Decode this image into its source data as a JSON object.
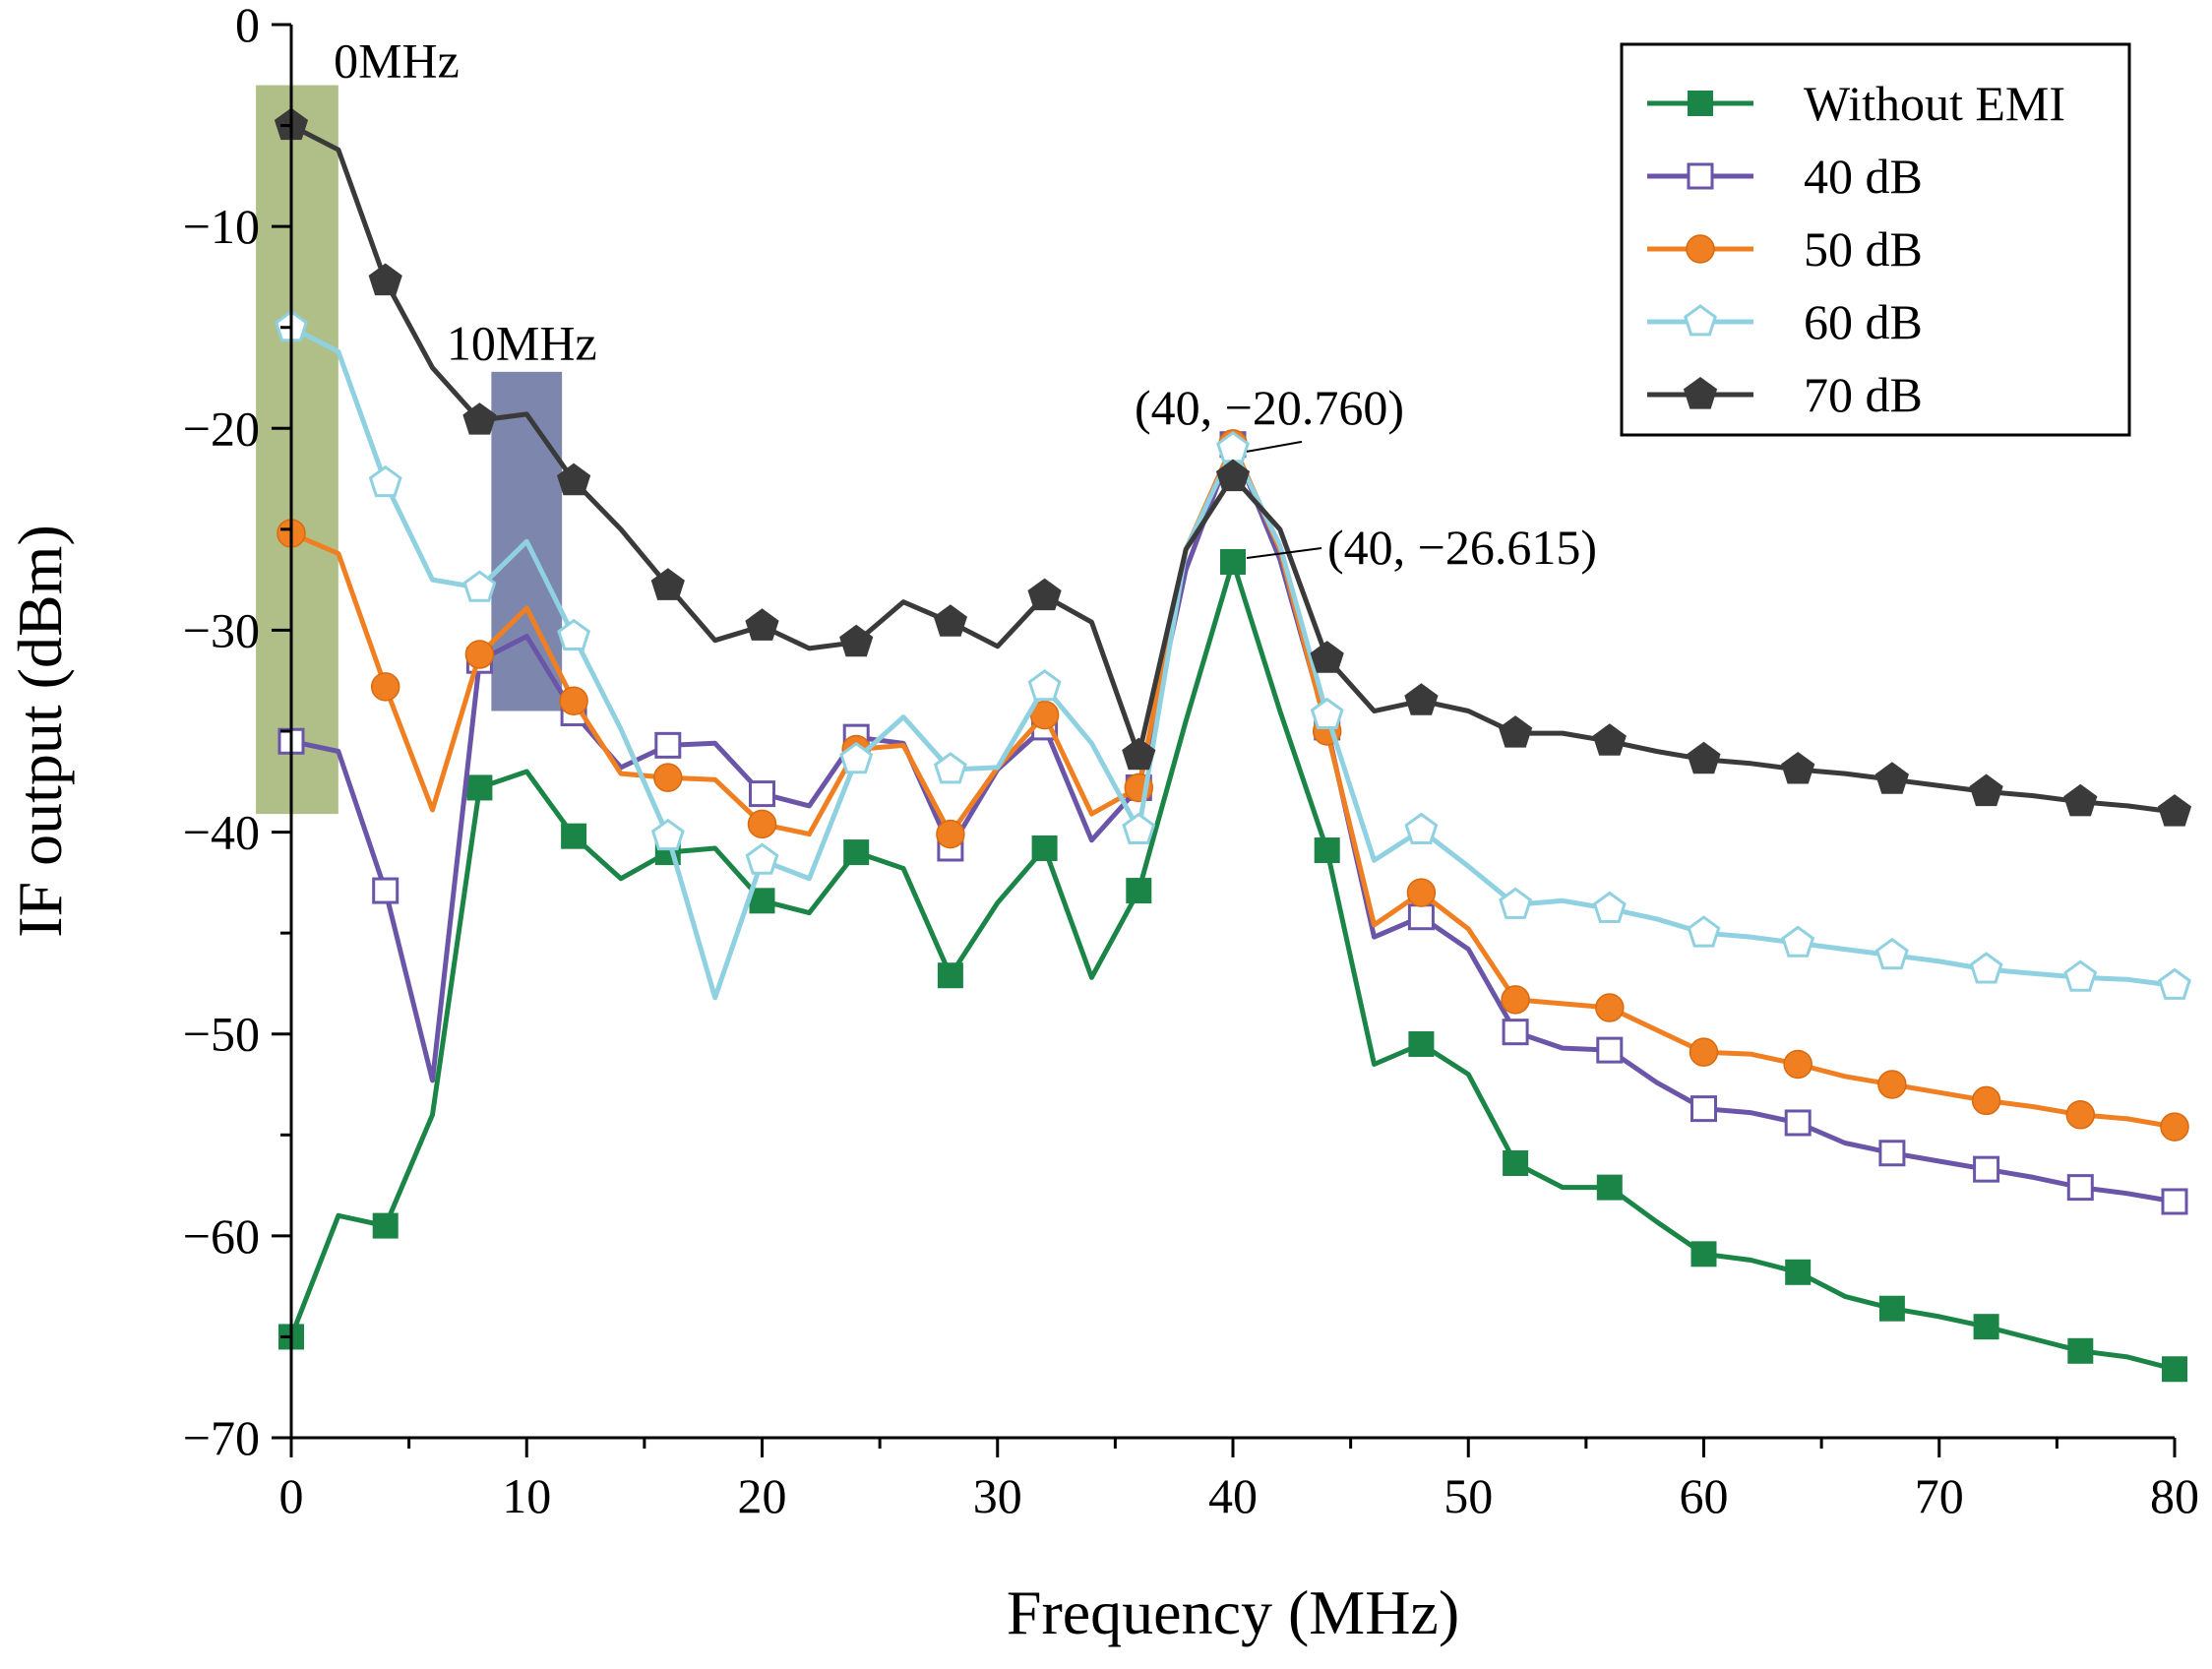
{
  "chart_data": {
    "type": "line",
    "title": "",
    "xlabel": "Frequency (MHz)",
    "ylabel": "IF output (dBm)",
    "xlim": [
      0,
      80
    ],
    "ylim": [
      -70,
      0
    ],
    "xticks": [
      0,
      10,
      20,
      30,
      40,
      50,
      60,
      70,
      80
    ],
    "yticks": [
      0,
      -10,
      -20,
      -30,
      -40,
      -50,
      -60,
      -70
    ],
    "xtick_labels": [
      "0",
      "10",
      "20",
      "30",
      "40",
      "50",
      "60",
      "70",
      "80"
    ],
    "ytick_labels": [
      "0",
      "−10",
      "−20",
      "−30",
      "−40",
      "−50",
      "−60",
      "−70"
    ],
    "grid": false,
    "legend_position": "top-right",
    "x": [
      0,
      2,
      4,
      6,
      8,
      10,
      12,
      14,
      16,
      18,
      20,
      22,
      24,
      26,
      28,
      30,
      32,
      34,
      36,
      38,
      40,
      42,
      44,
      46,
      48,
      50,
      52,
      54,
      56,
      58,
      60,
      62,
      64,
      66,
      68,
      70,
      72,
      74,
      76,
      78,
      80
    ],
    "series": [
      {
        "name": "Without EMI",
        "color": "#1b8547",
        "marker": "square-filled",
        "values": [
          -65.0,
          -59.0,
          -59.5,
          -54.0,
          -37.8,
          -37.0,
          -40.2,
          -42.3,
          -41.0,
          -40.8,
          -43.4,
          -44.0,
          -41.0,
          -41.8,
          -47.1,
          -43.5,
          -40.8,
          -47.2,
          -42.9,
          -34.5,
          -26.615,
          -34.0,
          -40.9,
          -51.5,
          -50.5,
          -52.0,
          -56.4,
          -57.6,
          -57.6,
          -59.3,
          -60.9,
          -61.2,
          -61.8,
          -63.0,
          -63.6,
          -64.0,
          -64.5,
          -65.1,
          -65.7,
          -66.0,
          -66.6
        ]
      },
      {
        "name": "40 dB",
        "color": "#6a55a8",
        "marker": "square-open",
        "values": [
          -35.5,
          -36.0,
          -42.9,
          -52.3,
          -31.5,
          -30.3,
          -34.1,
          -36.8,
          -35.7,
          -35.6,
          -38.1,
          -38.7,
          -35.3,
          -35.6,
          -40.8,
          -36.9,
          -34.8,
          -40.4,
          -37.8,
          -27.0,
          -20.8,
          -26.5,
          -34.8,
          -45.2,
          -44.2,
          -45.8,
          -49.9,
          -50.7,
          -50.8,
          -52.4,
          -53.7,
          -53.9,
          -54.4,
          -55.4,
          -55.9,
          -56.3,
          -56.7,
          -57.1,
          -57.6,
          -57.9,
          -58.3
        ]
      },
      {
        "name": "50 dB",
        "color": "#f07f22",
        "marker": "circle-filled",
        "values": [
          -25.2,
          -26.2,
          -32.8,
          -38.9,
          -31.2,
          -28.9,
          -33.5,
          -37.1,
          -37.3,
          -37.4,
          -39.6,
          -40.1,
          -35.9,
          -35.7,
          -40.1,
          -36.8,
          -34.2,
          -39.1,
          -37.8,
          -26.0,
          -20.76,
          -26.0,
          -35.0,
          -44.6,
          -43.0,
          -44.8,
          -48.3,
          -48.5,
          -48.7,
          -49.8,
          -50.9,
          -51.0,
          -51.5,
          -52.1,
          -52.5,
          -52.9,
          -53.3,
          -53.6,
          -54.0,
          -54.2,
          -54.6
        ]
      },
      {
        "name": "60 dB",
        "color": "#8fd1e0",
        "marker": "pentagon-open",
        "values": [
          -15.0,
          -16.2,
          -22.7,
          -27.5,
          -27.9,
          -25.6,
          -30.3,
          -34.9,
          -40.2,
          -48.2,
          -41.4,
          -42.3,
          -36.4,
          -34.3,
          -36.9,
          -36.8,
          -32.8,
          -35.6,
          -39.9,
          -26.0,
          -21.0,
          -25.8,
          -34.2,
          -41.4,
          -39.9,
          -41.7,
          -43.6,
          -43.4,
          -43.8,
          -44.3,
          -45.0,
          -45.2,
          -45.5,
          -45.8,
          -46.1,
          -46.4,
          -46.8,
          -47.0,
          -47.2,
          -47.3,
          -47.6
        ]
      },
      {
        "name": "70 dB",
        "color": "#3a3a3a",
        "marker": "pentagon-filled",
        "values": [
          -5.0,
          -6.2,
          -12.7,
          -17.0,
          -19.6,
          -19.3,
          -22.6,
          -25.0,
          -27.8,
          -30.5,
          -29.8,
          -30.9,
          -30.6,
          -28.6,
          -29.6,
          -30.8,
          -28.3,
          -29.6,
          -36.2,
          -26.0,
          -22.4,
          -25.0,
          -31.4,
          -34.0,
          -33.5,
          -34.0,
          -35.1,
          -35.1,
          -35.5,
          -36.0,
          -36.4,
          -36.6,
          -36.9,
          -37.1,
          -37.4,
          -37.7,
          -38.0,
          -38.2,
          -38.5,
          -38.7,
          -39.0
        ]
      }
    ],
    "highlight_regions": [
      {
        "label": "0MHz",
        "x_range": [
          -1.5,
          2.0
        ],
        "y_range": [
          -3,
          -39.1
        ],
        "color": "#a7b87a"
      },
      {
        "label": "10MHz",
        "x_range": [
          8.5,
          11.5
        ],
        "y_range": [
          -17.2,
          -34.0
        ],
        "color": "#6f7aa5"
      }
    ],
    "annotations": [
      {
        "text": "(40, −20.760)",
        "x": 40,
        "y": -20.76
      },
      {
        "text": "(40, −26.615)",
        "x": 40,
        "y": -26.615
      }
    ]
  }
}
